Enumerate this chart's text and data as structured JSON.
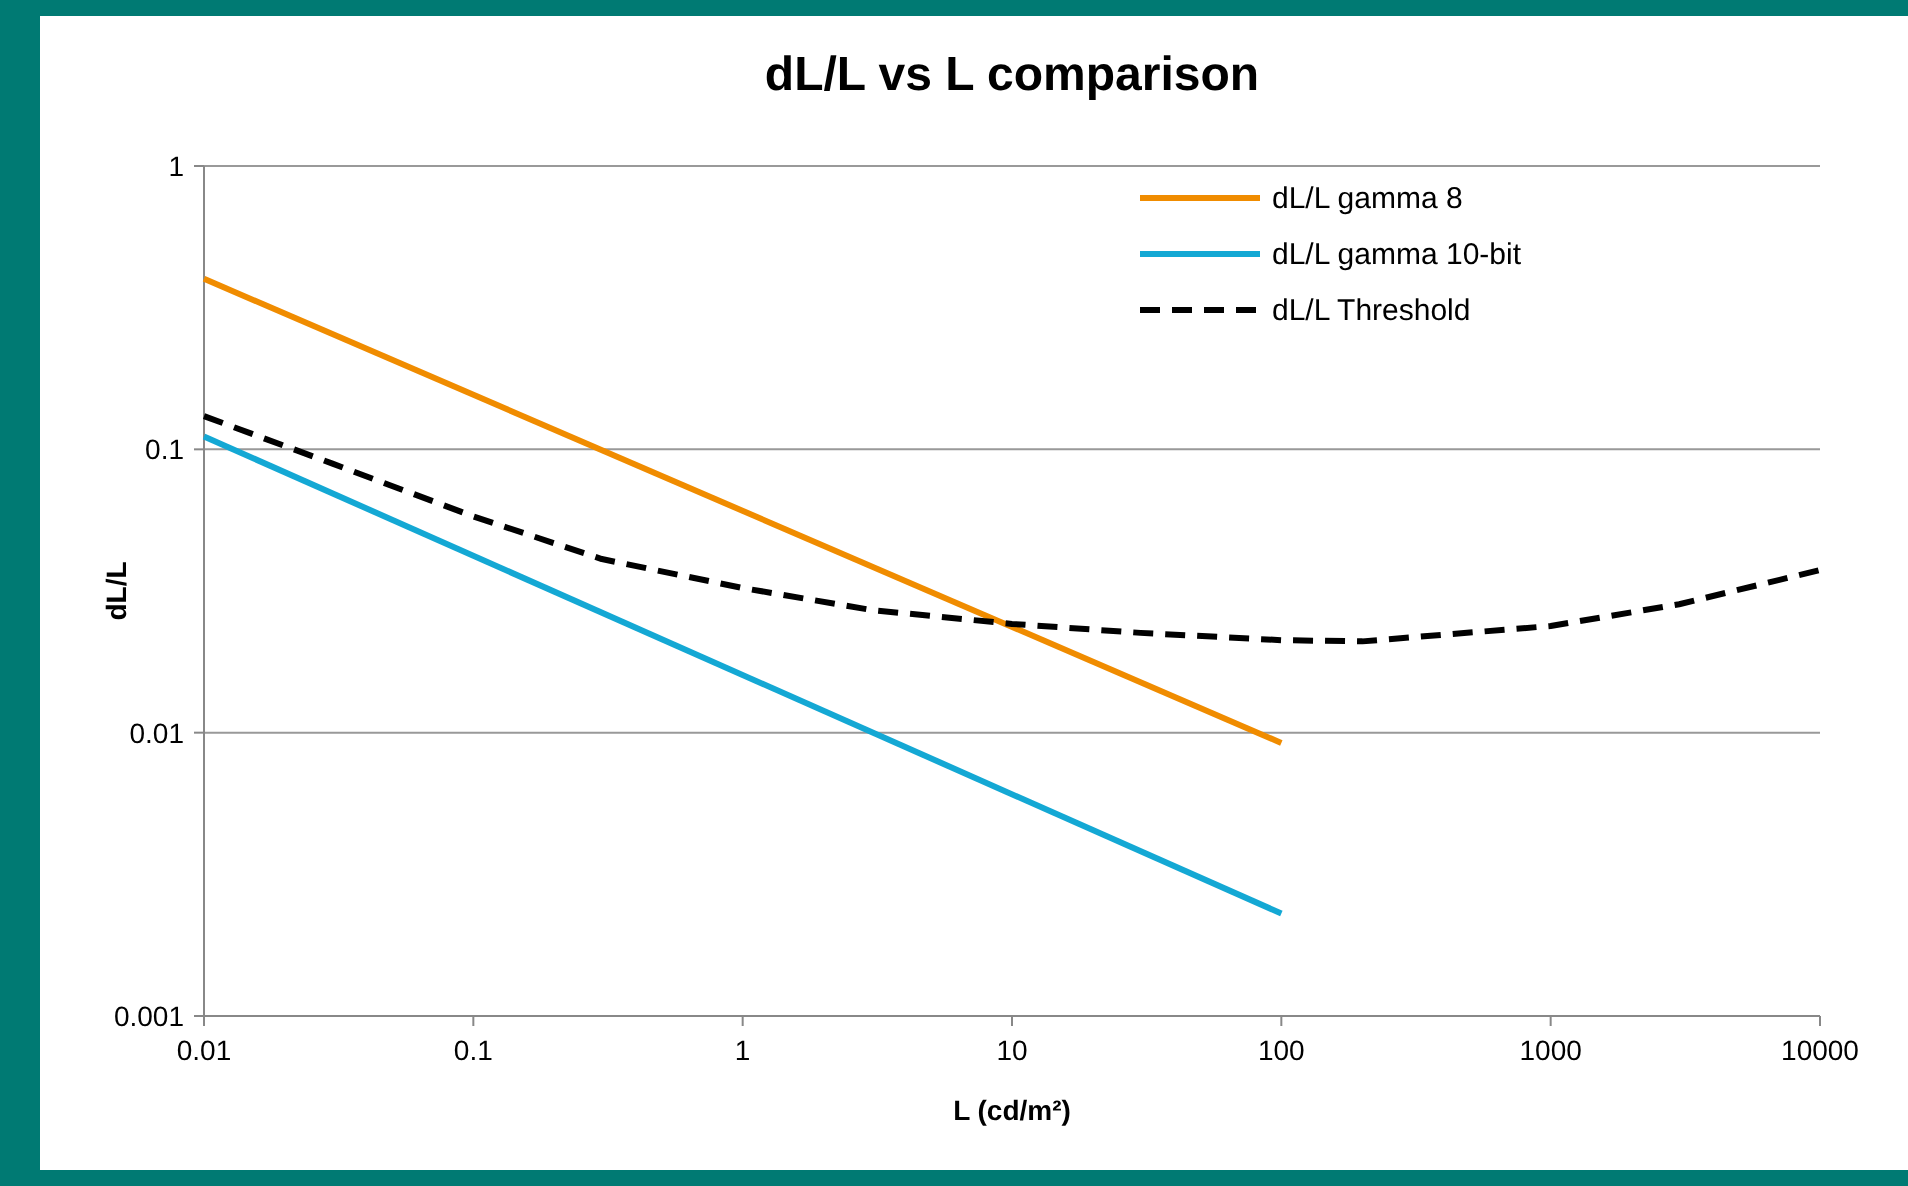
{
  "chart_data": {
    "type": "line",
    "title": "dL/L vs L comparison",
    "xlabel": "L (cd/m²)",
    "ylabel": "dL/L",
    "log": "xy",
    "grid": "y",
    "legend": "top right",
    "marker": "none",
    "xlim": [
      0.01,
      10000
    ],
    "xticks": [
      0.01,
      0.1,
      1,
      10,
      100,
      1000,
      10000
    ],
    "ylim": [
      0.001,
      1
    ],
    "yticks": [
      0.001,
      0.01,
      0.1,
      1
    ],
    "series": [
      {
        "name": "dL/L gamma 8",
        "color": "#f08c00",
        "x": [
          0.01,
          100
        ],
        "values": [
          0.4,
          0.0092
        ]
      },
      {
        "name": "dL/L gamma 10-bit",
        "color": "#14a8d4",
        "x": [
          0.01,
          100
        ],
        "values": [
          0.111,
          0.0023
        ]
      },
      {
        "name": "dL/L Threshold",
        "color": "#000000",
        "line_style": "dashed",
        "x": [
          0.01,
          0.03,
          0.1,
          0.3,
          1,
          3,
          10,
          30,
          100,
          200,
          1000,
          3000,
          10000
        ],
        "values": [
          0.131,
          0.089,
          0.058,
          0.041,
          0.0324,
          0.0271,
          0.0242,
          0.0225,
          0.0212,
          0.021,
          0.0238,
          0.0284,
          0.0375
        ]
      }
    ]
  }
}
